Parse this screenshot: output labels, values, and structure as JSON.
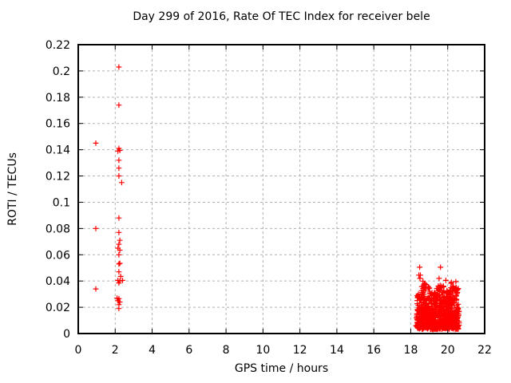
{
  "figure": {
    "background": "#ffffff",
    "text_color": "#000000"
  },
  "chart_data": {
    "type": "scatter",
    "title": "Day 299 of 2016, Rate Of TEC Index for receiver bele",
    "xlabel": "GPS time / hours",
    "ylabel": "ROTI / TECUs",
    "xlim": [
      0,
      22
    ],
    "ylim": [
      0,
      0.22
    ],
    "xticks": [
      0,
      2,
      4,
      6,
      8,
      10,
      12,
      14,
      16,
      18,
      20,
      22
    ],
    "xtick_labels": [
      "0",
      "2",
      "4",
      "6",
      "8",
      "10",
      "12",
      "14",
      "16",
      "18",
      "20",
      "22"
    ],
    "yticks": [
      0,
      0.02,
      0.04,
      0.06,
      0.08,
      0.1,
      0.12,
      0.14,
      0.16,
      0.18,
      0.2,
      0.22
    ],
    "ytick_labels": [
      "0",
      "0.02",
      "0.04",
      "0.06",
      "0.08",
      "0.1",
      "0.12",
      "0.14",
      "0.16",
      "0.18",
      "0.2",
      "0.22"
    ],
    "grid": true,
    "legend": "none",
    "marker": "plus",
    "marker_color": "#ff0000",
    "grid_color": "#b0b0b0",
    "axis_color": "#000000",
    "series": [
      {
        "name": "ROTI",
        "points": [
          [
            0.95,
            0.145
          ],
          [
            0.95,
            0.08
          ],
          [
            0.95,
            0.034
          ],
          [
            2.2,
            0.203
          ],
          [
            2.2,
            0.174
          ],
          [
            2.2,
            0.141
          ],
          [
            2.25,
            0.1395
          ],
          [
            2.15,
            0.139
          ],
          [
            2.2,
            0.132
          ],
          [
            2.2,
            0.126
          ],
          [
            2.2,
            0.12
          ],
          [
            2.35,
            0.115
          ],
          [
            2.2,
            0.088
          ],
          [
            2.2,
            0.077
          ],
          [
            2.25,
            0.071
          ],
          [
            2.2,
            0.068
          ],
          [
            2.15,
            0.065
          ],
          [
            2.25,
            0.0635
          ],
          [
            2.2,
            0.06
          ],
          [
            2.25,
            0.0535
          ],
          [
            2.2,
            0.053
          ],
          [
            2.2,
            0.047
          ],
          [
            2.3,
            0.0435
          ],
          [
            2.15,
            0.0405
          ],
          [
            2.25,
            0.04
          ],
          [
            2.4,
            0.0405
          ],
          [
            2.2,
            0.0385
          ],
          [
            2.1,
            0.027
          ],
          [
            2.2,
            0.0265
          ],
          [
            2.15,
            0.025
          ],
          [
            2.25,
            0.024
          ],
          [
            2.2,
            0.022
          ],
          [
            2.2,
            0.019
          ],
          [
            18.48,
            0.0505
          ],
          [
            18.44,
            0.0445
          ],
          [
            18.52,
            0.0445
          ],
          [
            18.5,
            0.042
          ],
          [
            19.61,
            0.0505
          ],
          [
            19.53,
            0.042
          ],
          [
            19.9,
            0.0405
          ],
          [
            20.44,
            0.0395
          ],
          [
            18.28,
            0.006
          ],
          [
            18.3,
            0.012
          ]
        ]
      }
    ],
    "dense_cluster": {
      "comment": "solid mass of + markers, evening sector",
      "x_min": 18.33,
      "x_max": 20.62,
      "y_base": 0.0045,
      "count": 900,
      "power": 2.0,
      "jitter": 0.0015,
      "seed": 299,
      "envelope": [
        [
          18.33,
          18.55,
          0.03
        ],
        [
          18.55,
          18.8,
          0.04
        ],
        [
          18.8,
          19.05,
          0.036
        ],
        [
          19.05,
          19.4,
          0.032
        ],
        [
          19.4,
          19.8,
          0.036
        ],
        [
          19.8,
          20.15,
          0.033
        ],
        [
          20.15,
          20.62,
          0.038
        ]
      ]
    }
  }
}
